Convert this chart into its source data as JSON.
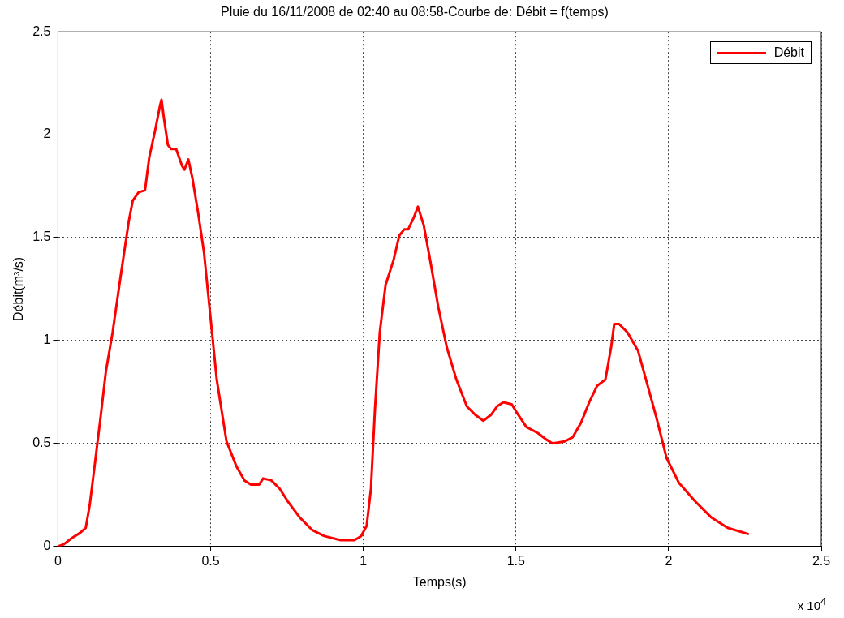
{
  "chart_data": {
    "type": "line",
    "title": "Pluie du 16/11/2008 de 02:40 au 08:58-Courbe de: Débit = f(temps)",
    "xlabel": "Temps(s)",
    "ylabel": "Débit(m³/s)",
    "annotations": [
      "x 10$^{4}$"
    ],
    "series": [
      {
        "name": "Débit",
        "color": "#ff0000",
        "x": [
          0,
          0.019,
          0.045,
          0.072,
          0.091,
          0.104,
          0.12,
          0.139,
          0.157,
          0.179,
          0.205,
          0.232,
          0.245,
          0.264,
          0.285,
          0.299,
          0.318,
          0.334,
          0.339,
          0.347,
          0.36,
          0.371,
          0.387,
          0.406,
          0.414,
          0.427,
          0.44,
          0.459,
          0.478,
          0.499,
          0.52,
          0.552,
          0.584,
          0.611,
          0.632,
          0.659,
          0.672,
          0.699,
          0.726,
          0.752,
          0.792,
          0.832,
          0.872,
          0.926,
          0.971,
          0.993,
          1.011,
          1.025,
          1.038,
          1.054,
          1.073,
          1.099,
          1.118,
          1.134,
          1.147,
          1.166,
          1.179,
          1.198,
          1.219,
          1.246,
          1.273,
          1.305,
          1.339,
          1.366,
          1.393,
          1.419,
          1.438,
          1.459,
          1.486,
          1.507,
          1.534,
          1.572,
          1.598,
          1.62,
          1.66,
          1.686,
          1.713,
          1.74,
          1.766,
          1.793,
          1.812,
          1.822,
          1.838,
          1.865,
          1.9,
          1.926,
          1.961,
          1.993,
          2.033,
          2.086,
          2.14,
          2.193,
          2.26
        ],
        "values": [
          0,
          0.01,
          0.04,
          0.065,
          0.09,
          0.2,
          0.39,
          0.62,
          0.85,
          1.04,
          1.31,
          1.58,
          1.68,
          1.72,
          1.73,
          1.89,
          2.02,
          2.14,
          2.17,
          2.08,
          1.95,
          1.93,
          1.93,
          1.85,
          1.83,
          1.88,
          1.79,
          1.62,
          1.43,
          1.12,
          0.81,
          0.51,
          0.39,
          0.32,
          0.3,
          0.3,
          0.33,
          0.32,
          0.28,
          0.22,
          0.14,
          0.08,
          0.05,
          0.03,
          0.03,
          0.05,
          0.1,
          0.28,
          0.66,
          1.04,
          1.27,
          1.39,
          1.51,
          1.54,
          1.54,
          1.6,
          1.65,
          1.56,
          1.39,
          1.16,
          0.97,
          0.81,
          0.68,
          0.64,
          0.61,
          0.64,
          0.68,
          0.7,
          0.69,
          0.64,
          0.58,
          0.55,
          0.52,
          0.5,
          0.51,
          0.53,
          0.6,
          0.7,
          0.78,
          0.81,
          0.97,
          1.08,
          1.08,
          1.04,
          0.95,
          0.81,
          0.62,
          0.43,
          0.31,
          0.22,
          0.14,
          0.09,
          0.06
        ]
      }
    ],
    "xlim": [
      0,
      2.5
    ],
    "xticks": [
      0,
      0.5,
      1,
      1.5,
      2,
      2.5
    ],
    "ylim": [
      0,
      2.5
    ],
    "yticks": [
      0,
      0.5,
      1,
      1.5,
      2,
      2.5
    ],
    "grid": true,
    "legend": "top right",
    "marker": "none",
    "line_style": "solid"
  }
}
